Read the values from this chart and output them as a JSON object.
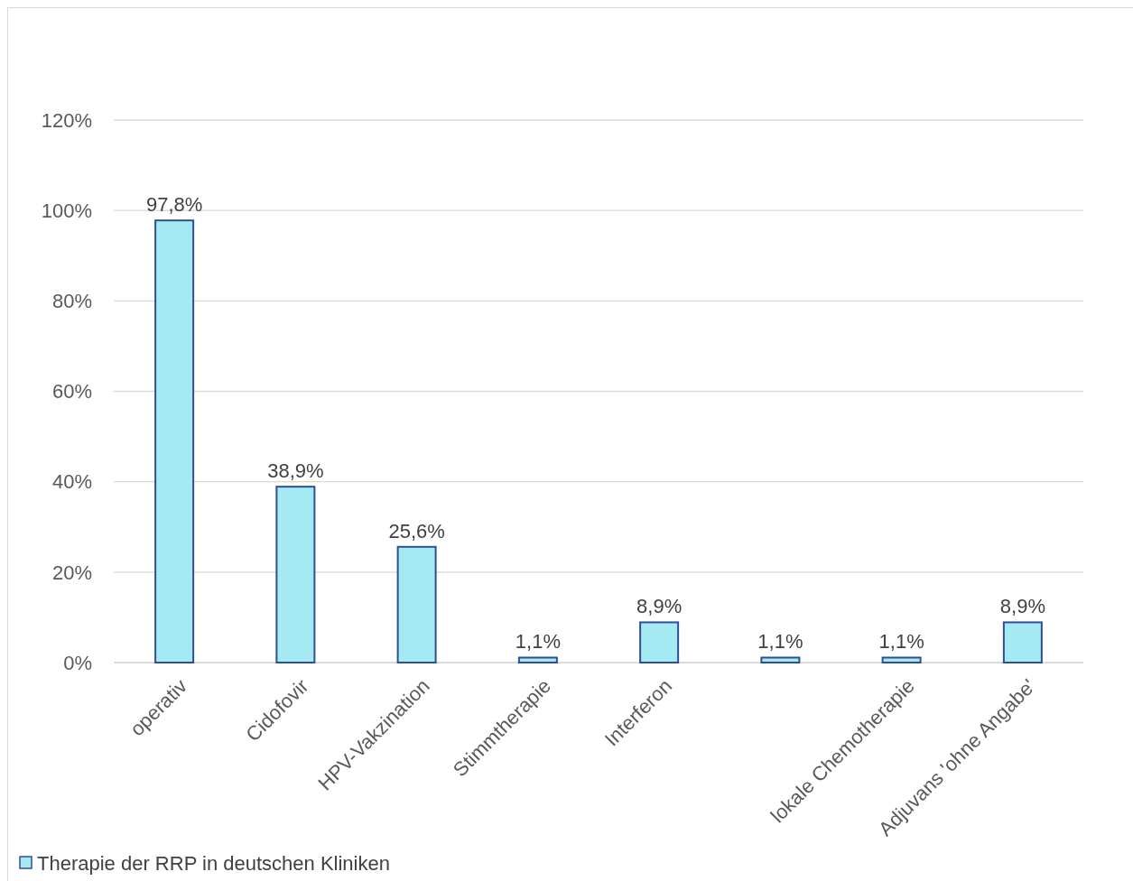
{
  "chart_data": {
    "type": "bar",
    "categories": [
      "operativ",
      "Cidofovir",
      "HPV-Vakzination",
      "Stimmtherapie",
      "Interferon",
      null,
      "lokale Chemotherapie",
      "Adjuvans 'ohne Angabe'"
    ],
    "series": [
      {
        "name": "Therapie der RRP in deutschen Kliniken",
        "color": "#a5e9f3",
        "values": [
          97.8,
          38.9,
          25.6,
          1.1,
          8.9,
          1.1,
          1.1,
          8.9
        ],
        "value_labels": [
          "97,8%",
          "38,9%",
          "25,6%",
          "1,1%",
          "8,9%",
          "1,1%",
          "1,1%",
          "8,9%"
        ]
      }
    ],
    "ylim": [
      0,
      120
    ],
    "yticks": [
      {
        "value": 0,
        "label": "0%"
      },
      {
        "value": 20,
        "label": "20%"
      },
      {
        "value": 40,
        "label": "40%"
      },
      {
        "value": 60,
        "label": "60%"
      },
      {
        "value": 80,
        "label": "80%"
      },
      {
        "value": 100,
        "label": "100%"
      },
      {
        "value": 120,
        "label": "120%"
      }
    ],
    "grid": "y",
    "legend": "bottom left"
  }
}
